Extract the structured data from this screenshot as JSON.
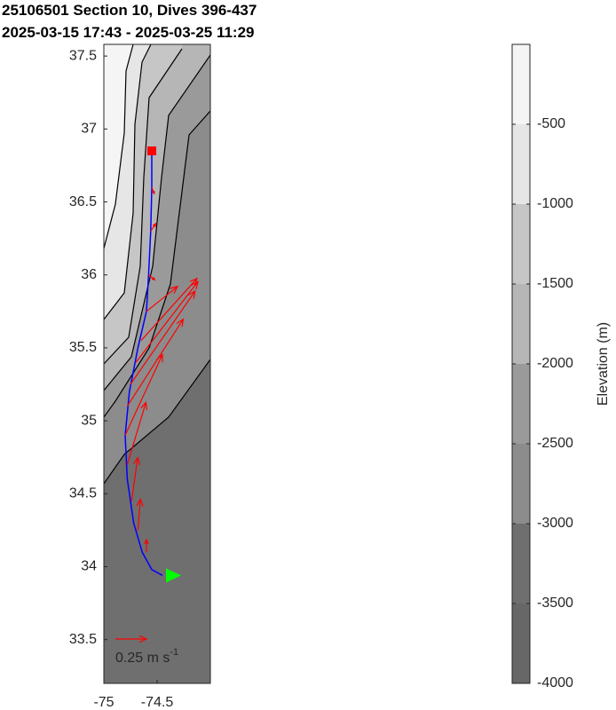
{
  "chart_data": {
    "type": "quiver",
    "title": "25106501 Section 10, Dives 396-437",
    "subtitle": "2025-03-15 17:43 - 2025-03-25 11:29",
    "xlim": [
      -75,
      -74
    ],
    "ylim": [
      33.2,
      37.58
    ],
    "xticks": [
      -75,
      -74.5
    ],
    "yticks": [
      33.5,
      34,
      34.5,
      35,
      35.5,
      36,
      36.5,
      37,
      37.5
    ],
    "track": {
      "color": "#0000ff",
      "x": [
        -74.55,
        -74.55,
        -74.56,
        -74.58,
        -74.6,
        -74.68,
        -74.76,
        -74.8,
        -74.78,
        -74.72,
        -74.64,
        -74.55,
        -74.45
      ],
      "y": [
        36.85,
        36.6,
        36.3,
        36.0,
        35.75,
        35.5,
        35.2,
        34.9,
        34.6,
        34.3,
        34.1,
        33.98,
        33.94
      ]
    },
    "start_color": "#ff0000",
    "end_color": "#00ff00",
    "arrows": {
      "color": "#ff0000",
      "x": [
        -74.55,
        -74.56,
        -74.58,
        -74.6,
        -74.65,
        -74.7,
        -74.75,
        -74.78,
        -74.8,
        -74.78,
        -74.74,
        -74.68,
        -74.6
      ],
      "y": [
        36.6,
        36.3,
        36.0,
        35.75,
        35.55,
        35.4,
        35.25,
        35.1,
        34.9,
        34.7,
        34.45,
        34.25,
        34.1
      ],
      "u": [
        0.02,
        0.04,
        0.05,
        0.25,
        0.45,
        0.5,
        0.52,
        0.45,
        0.3,
        0.15,
        0.05,
        0.02,
        0.0
      ],
      "v": [
        -0.05,
        0.06,
        -0.04,
        0.2,
        0.5,
        0.65,
        0.75,
        0.7,
        0.65,
        0.5,
        0.35,
        0.25,
        0.1
      ]
    },
    "scale_value": 0.25,
    "scale_label": "0.25 m s",
    "scale_label_exponent": "-1",
    "colorbar": {
      "label": "Elevation (m)",
      "clim": [
        -4000,
        0
      ],
      "ticks": [
        -500,
        -1000,
        -1500,
        -2000,
        -2500,
        -3000,
        -3500,
        -4000
      ],
      "colors": [
        "#f5f5f5",
        "#e6e6e6",
        "#c6c6c6",
        "#b6b6b6",
        "#9a9a9a",
        "#8c8c8c",
        "#6f6f6f",
        "#676767"
      ]
    }
  }
}
